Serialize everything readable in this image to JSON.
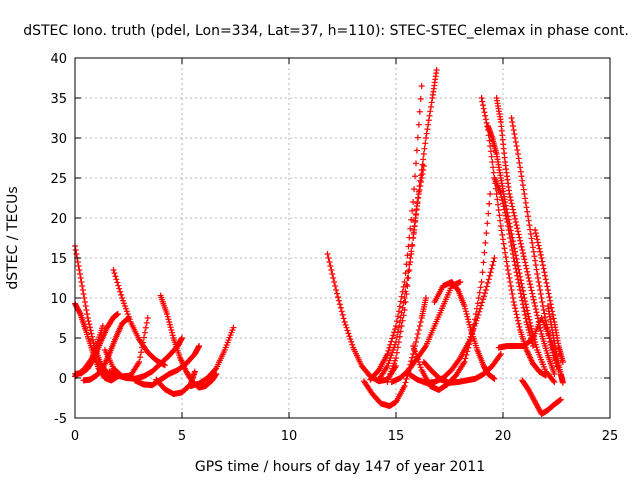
{
  "chart_data": {
    "type": "scatter",
    "title": "dSTEC Iono. truth (pdel, Lon=334, Lat=37, h=110): STEC-STEC_elemax in phase cont.",
    "xlabel": "GPS time / hours of day 147 of year 2011",
    "ylabel": "dSTEC  / TECUs",
    "xlim": [
      0,
      25
    ],
    "ylim": [
      -5,
      40
    ],
    "xticks": [
      0,
      5,
      10,
      15,
      20,
      25
    ],
    "yticks": [
      -5,
      0,
      5,
      10,
      15,
      20,
      25,
      30,
      35,
      40
    ],
    "grid": true,
    "marker": "+",
    "color": "#ff0000",
    "series": [
      {
        "x": [
          0.0,
          0.3,
          0.6,
          0.9,
          1.2,
          1.5,
          1.8
        ],
        "y": [
          16.5,
          12.0,
          7.5,
          4.0,
          1.8,
          0.6,
          0.1
        ]
      },
      {
        "x": [
          0.0,
          0.25,
          0.5,
          0.8,
          1.1,
          1.4,
          1.7,
          2.0
        ],
        "y": [
          9.3,
          8.0,
          6.0,
          3.5,
          1.2,
          0.0,
          -0.3,
          0.2
        ]
      },
      {
        "x": [
          0.0,
          0.3,
          0.6,
          0.9,
          1.2,
          1.5,
          1.8,
          2.0
        ],
        "y": [
          0.5,
          0.6,
          1.2,
          2.5,
          4.5,
          6.3,
          7.6,
          8.0
        ]
      },
      {
        "x": [
          0.0,
          0.4,
          0.8,
          1.0,
          1.3
        ],
        "y": [
          0.2,
          1.0,
          2.5,
          4.0,
          6.5
        ]
      },
      {
        "x": [
          0.4,
          0.7,
          1.0,
          1.3,
          1.6,
          1.9,
          2.2,
          2.5
        ],
        "y": [
          -0.3,
          -0.2,
          0.3,
          1.2,
          3.0,
          5.0,
          6.8,
          7.5
        ]
      },
      {
        "x": [
          1.8,
          2.2,
          2.6,
          3.0,
          3.4,
          3.8,
          4.2
        ],
        "y": [
          13.5,
          10.0,
          7.0,
          4.8,
          3.2,
          2.2,
          1.6
        ]
      },
      {
        "x": [
          1.6,
          2.0,
          2.4,
          2.8,
          3.2,
          3.6,
          4.0,
          4.4,
          4.8,
          5.0
        ],
        "y": [
          0.8,
          0.3,
          0.0,
          -0.1,
          0.2,
          0.8,
          1.8,
          2.8,
          4.0,
          5.0
        ]
      },
      {
        "x": [
          1.4,
          1.8,
          2.2,
          2.6,
          3.0,
          3.4
        ],
        "y": [
          3.5,
          1.2,
          0.2,
          0.3,
          2.0,
          7.5
        ]
      },
      {
        "x": [
          4.0,
          4.3,
          4.6,
          4.9,
          5.2,
          5.5,
          5.8,
          6.1,
          6.4,
          6.6
        ],
        "y": [
          10.3,
          8.0,
          5.0,
          2.6,
          0.8,
          -0.5,
          -1.2,
          -1.0,
          -0.3,
          0.5
        ]
      },
      {
        "x": [
          2.8,
          3.2,
          3.6,
          4.0,
          4.4,
          4.8,
          5.2,
          5.6,
          5.8
        ],
        "y": [
          -0.3,
          -0.8,
          -0.9,
          -0.2,
          0.5,
          1.0,
          1.8,
          3.0,
          4.0
        ]
      },
      {
        "x": [
          3.8,
          4.2,
          4.6,
          5.0,
          5.4,
          5.6
        ],
        "y": [
          -0.2,
          -1.4,
          -2.0,
          -1.8,
          -0.8,
          0.8
        ]
      },
      {
        "x": [
          5.4,
          5.8,
          6.2,
          6.6,
          7.0,
          7.4
        ],
        "y": [
          -1.0,
          -0.7,
          0.0,
          1.2,
          3.5,
          6.3
        ]
      },
      {
        "x": [
          11.8,
          12.2,
          12.6,
          13.0,
          13.4,
          13.8,
          14.2,
          14.6,
          15.0
        ],
        "y": [
          15.5,
          11.0,
          7.0,
          3.8,
          1.5,
          0.2,
          -0.4,
          -0.2,
          1.5
        ]
      },
      {
        "x": [
          13.5,
          13.9,
          14.3,
          14.7,
          15.0,
          15.4,
          15.8,
          16.2,
          16.4
        ],
        "y": [
          -0.4,
          -2.0,
          -3.2,
          -3.5,
          -3.0,
          -1.0,
          3.0,
          7.5,
          10.0
        ]
      },
      {
        "x": [
          14.6,
          15.0,
          15.4,
          15.8,
          16.1,
          16.4,
          16.7,
          16.9
        ],
        "y": [
          -0.5,
          2.5,
          8.5,
          17.5,
          24.0,
          30.0,
          35.0,
          38.5
        ]
      },
      {
        "x": [
          14.2,
          14.6,
          15.0,
          15.4,
          15.8,
          16.0,
          16.3
        ],
        "y": [
          -0.2,
          1.5,
          4.5,
          10.0,
          17.5,
          22.0,
          26.5
        ]
      },
      {
        "x": [
          13.8,
          14.2,
          14.6,
          15.0,
          15.4,
          15.8,
          16.2
        ],
        "y": [
          -0.2,
          1.0,
          3.0,
          6.5,
          12.0,
          22.0,
          36.5
        ]
      },
      {
        "x": [
          14.8,
          15.2,
          15.6,
          16.0,
          16.4,
          16.8,
          17.2,
          17.6,
          18.0
        ],
        "y": [
          -0.5,
          0.0,
          1.0,
          2.5,
          4.0,
          6.5,
          9.0,
          11.5,
          12.0
        ]
      },
      {
        "x": [
          15.6,
          16.0,
          16.4,
          16.8,
          17.2,
          17.6,
          18.0,
          18.4,
          18.8,
          19.2,
          19.6
        ],
        "y": [
          0.5,
          -0.2,
          -0.6,
          -0.5,
          0.0,
          1.0,
          2.5,
          4.5,
          7.5,
          11.0,
          15.0
        ]
      },
      {
        "x": [
          16.3,
          16.7,
          17.1,
          17.5,
          17.9,
          18.3,
          18.7,
          19.1,
          19.5,
          19.9
        ],
        "y": [
          2.0,
          0.8,
          -0.2,
          -0.6,
          -0.5,
          -0.3,
          -0.1,
          0.5,
          1.5,
          3.0
        ]
      },
      {
        "x": [
          15.8,
          16.2,
          16.6,
          17.0,
          17.4,
          17.8,
          18.2,
          18.6,
          19.0,
          19.4
        ],
        "y": [
          4.0,
          1.0,
          -1.0,
          -1.5,
          -0.8,
          0.3,
          2.0,
          6.0,
          12.0,
          23.0
        ]
      },
      {
        "x": [
          16.8,
          17.2,
          17.6,
          17.9,
          18.2,
          18.5,
          18.8,
          19.1,
          19.3,
          19.6
        ],
        "y": [
          9.5,
          11.5,
          12.0,
          11.0,
          9.0,
          6.0,
          3.5,
          1.5,
          0.5,
          -0.1
        ]
      },
      {
        "x": [
          19.0,
          19.3,
          19.6,
          19.9,
          20.2,
          20.5,
          20.8,
          21.1,
          21.4,
          21.7,
          22.0
        ],
        "y": [
          35.0,
          31.0,
          25.0,
          19.0,
          14.0,
          9.5,
          6.0,
          3.5,
          1.8,
          0.8,
          0.3
        ]
      },
      {
        "x": [
          19.3,
          19.5,
          19.7,
          19.9,
          20.1,
          20.4,
          20.7,
          21.0,
          21.3,
          21.6,
          22.0,
          22.4
        ],
        "y": [
          31.5,
          30.0,
          28.0,
          25.0,
          22.0,
          18.0,
          14.0,
          10.0,
          6.5,
          3.5,
          0.8,
          -0.5
        ]
      },
      {
        "x": [
          19.7,
          19.9,
          20.1,
          20.3,
          20.6,
          20.9,
          21.2,
          21.5,
          21.8,
          22.1,
          22.4
        ],
        "y": [
          35.0,
          32.0,
          27.0,
          23.0,
          19.5,
          16.0,
          12.5,
          9.0,
          5.5,
          2.8,
          0.5
        ]
      },
      {
        "x": [
          20.4,
          20.7,
          21.0,
          21.3,
          21.6,
          21.9,
          22.2,
          22.5
        ],
        "y": [
          32.5,
          28.0,
          23.0,
          18.0,
          13.0,
          8.5,
          4.5,
          1.5
        ]
      },
      {
        "x": [
          21.5,
          21.8,
          22.1,
          22.4,
          22.6,
          22.8
        ],
        "y": [
          18.5,
          15.0,
          11.0,
          7.0,
          4.0,
          2.0
        ]
      },
      {
        "x": [
          22.1,
          22.3,
          22.5,
          22.7,
          22.8
        ],
        "y": [
          9.0,
          6.0,
          3.0,
          0.5,
          -0.6
        ]
      },
      {
        "x": [
          20.9,
          21.2,
          21.5,
          21.8,
          22.1,
          22.4,
          22.7
        ],
        "y": [
          -0.3,
          -1.5,
          -3.0,
          -4.5,
          -4.0,
          -3.3,
          -2.7
        ]
      },
      {
        "x": [
          19.8,
          20.2,
          20.6,
          21.0,
          21.4,
          21.8,
          22.2,
          22.6
        ],
        "y": [
          3.8,
          4.0,
          4.0,
          4.0,
          5.0,
          7.5,
          5.0,
          1.0
        ]
      },
      {
        "x": [
          19.6,
          19.9,
          20.2,
          20.5,
          20.8,
          21.1,
          21.4
        ],
        "y": [
          25.0,
          23.0,
          19.5,
          15.0,
          11.0,
          7.0,
          4.0
        ]
      }
    ]
  }
}
